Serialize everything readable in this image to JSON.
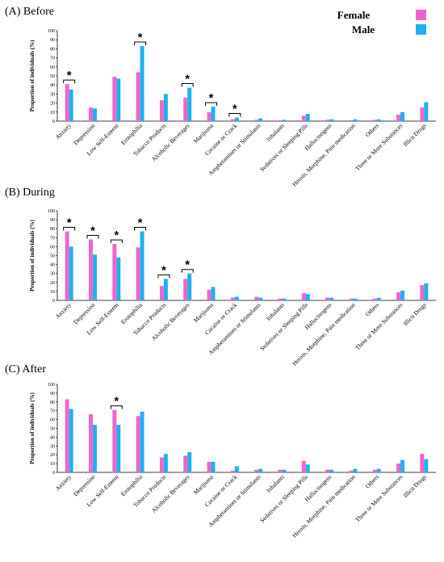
{
  "legend": {
    "female_label": "Female",
    "male_label": "Male"
  },
  "colors": {
    "female": "#ee66cc",
    "male": "#1fb1ee"
  },
  "chart_data": [
    {
      "type": "bar",
      "title": "(A) Before",
      "ylabel": "Proportion of individuals  (%)",
      "ylim": [
        0,
        100
      ],
      "yticks": [
        0,
        10,
        20,
        30,
        40,
        50,
        60,
        70,
        80,
        90,
        100
      ],
      "categories": [
        "Anxiety",
        "Depression",
        "Low Self-Esteem",
        "Erotophilia",
        "Tobacco Products",
        "Alcoholic Beverages",
        "Marijuana",
        "Cocaine or Crack",
        "Amphetamines or Stimulants",
        "Inhalants",
        "Sedatives or Sleeping Pills",
        "Hallucinogens",
        "Heroin, Morphine, Pain medication",
        "Others",
        "Three or More Substances",
        "Illicit Drugs"
      ],
      "series": [
        {
          "name": "Female",
          "values": [
            41,
            15,
            49,
            54,
            23,
            26,
            10,
            2,
            1.5,
            1,
            6,
            1.5,
            1,
            1.5,
            7,
            15
          ]
        },
        {
          "name": "Male",
          "values": [
            35,
            14,
            47,
            83,
            30,
            37,
            16,
            4,
            3,
            1.5,
            8,
            2,
            2,
            2,
            10,
            21
          ]
        }
      ],
      "significant": [
        true,
        false,
        false,
        true,
        false,
        true,
        true,
        true,
        false,
        false,
        false,
        false,
        false,
        false,
        false,
        false
      ],
      "significance_label": "*"
    },
    {
      "type": "bar",
      "title": "(B) During",
      "ylabel": "Proportion of individuals  (%)",
      "ylim": [
        0,
        100
      ],
      "yticks": [
        0,
        10,
        20,
        30,
        40,
        50,
        60,
        70,
        80,
        90,
        100
      ],
      "categories": [
        "Anxiety",
        "Depression",
        "Low Self-Esteem",
        "Erotophilia",
        "Tobacco Products",
        "Alcoholic Beverages",
        "Marijuana",
        "Cocaine or Crack",
        "Amphetamines or Stimulants",
        "Inhalants",
        "Sedatives or Sleeping Pills",
        "Hallucinogens",
        "Heroin, Morphine, Pain medication",
        "Others",
        "Three or More Substances",
        "Illicit Drugs"
      ],
      "series": [
        {
          "name": "Female",
          "values": [
            77,
            68,
            63,
            59,
            16,
            24,
            12,
            3,
            4,
            2,
            8,
            3,
            2,
            2,
            9,
            17
          ]
        },
        {
          "name": "Male",
          "values": [
            60,
            51,
            48,
            77,
            24,
            30,
            15,
            4,
            3,
            2,
            7,
            3,
            2,
            3,
            11,
            19
          ]
        }
      ],
      "significant": [
        true,
        true,
        true,
        true,
        true,
        true,
        false,
        false,
        false,
        false,
        false,
        false,
        false,
        false,
        false,
        false
      ],
      "significance_label": "*"
    },
    {
      "type": "bar",
      "title": "(C) After",
      "ylabel": "Proportion of individuals  (%)",
      "ylim": [
        0,
        100
      ],
      "yticks": [
        0,
        10,
        20,
        30,
        40,
        50,
        60,
        70,
        80,
        90,
        100
      ],
      "categories": [
        "Anxiety",
        "Depression",
        "Low Self-Esteem",
        "Erotophilia",
        "Tobacco Products",
        "Alcoholic Beverages",
        "Marijuana",
        "Cocaine or Crack",
        "Amphetamines or Stimulants",
        "Inhalants",
        "Sedatives or Sleeping Pills",
        "Hallucinogens",
        "Heroin, Morphine, Pain medication",
        "Others",
        "Three or More Substances",
        "Illicit Drugs"
      ],
      "series": [
        {
          "name": "Female",
          "values": [
            83,
            66,
            71,
            64,
            17,
            19,
            12,
            2,
            3,
            3,
            13,
            3,
            2,
            3,
            10,
            21
          ]
        },
        {
          "name": "Male",
          "values": [
            72,
            54,
            54,
            69,
            21,
            23,
            12,
            7,
            4,
            3,
            9,
            3,
            4,
            4,
            14,
            15
          ]
        }
      ],
      "significant": [
        false,
        false,
        true,
        false,
        false,
        false,
        false,
        false,
        false,
        false,
        false,
        false,
        false,
        false,
        false,
        false
      ],
      "significance_label": "*"
    }
  ]
}
